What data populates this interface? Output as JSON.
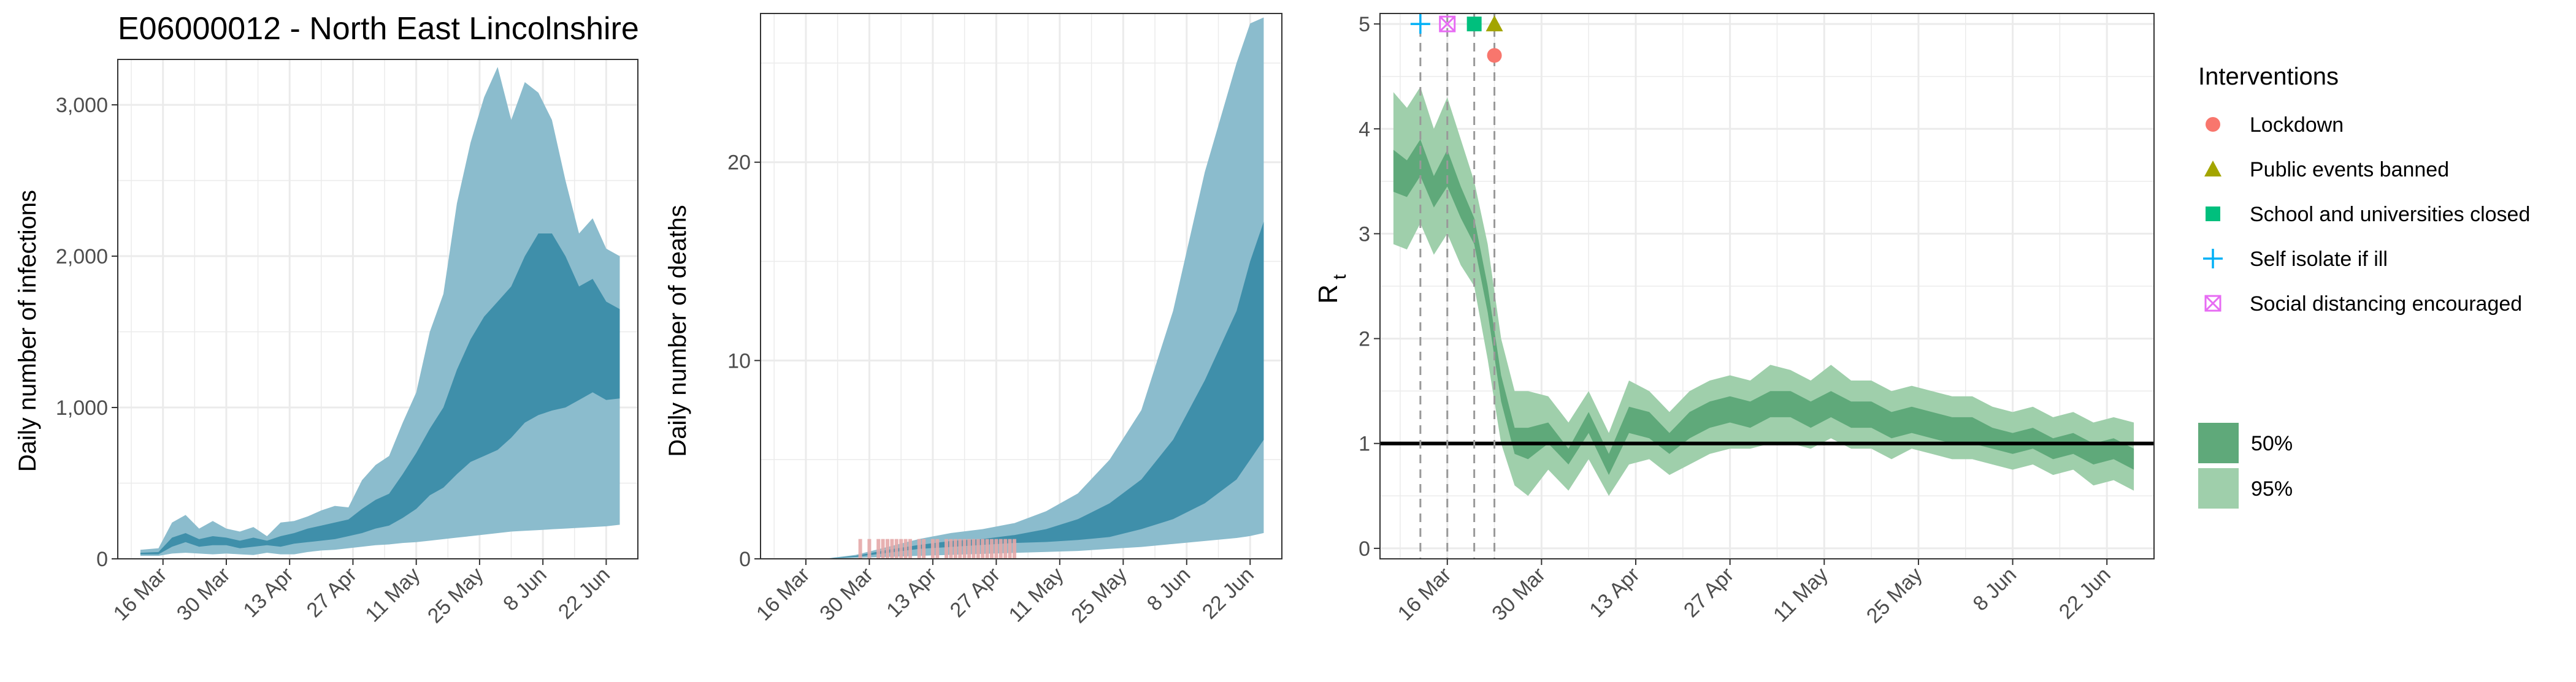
{
  "title": "E06000012 - North East Lincolnshire",
  "colors": {
    "band_95_blue": "#8bbccd",
    "band_50_blue": "#3f8faa",
    "band_95_green": "#9fcfab",
    "band_50_green": "#5fa97a",
    "observed_deaths": "#e4a8a8",
    "grid": "#ebebeb",
    "panel_border": "#333333",
    "rt_line": "#000000",
    "lockdown": "#f8766d",
    "public_events_banned": "#a3a500",
    "school_closed": "#00bf7d",
    "self_isolate": "#00b0f6",
    "social_distancing": "#e76bf3"
  },
  "chart_data": [
    {
      "type": "area",
      "id": "infections",
      "title": "E06000012 - North East Lincolnshire",
      "ylabel": "Daily number of infections",
      "xlabel": "",
      "x_ticks": [
        "16 Mar",
        "30 Mar",
        "13 Apr",
        "27 Apr",
        "11 May",
        "25 May",
        "8 Jun",
        "22 Jun"
      ],
      "y_ticks": [
        "0",
        "1,000",
        "2,000",
        "3,000"
      ],
      "y_tick_values": [
        0,
        1000,
        2000,
        3000
      ],
      "ylim": [
        0,
        3300
      ],
      "xlim": [
        "2020-03-06",
        "2020-06-29"
      ],
      "grid": true,
      "series": [
        {
          "name": "95%",
          "x": [
            "2020-03-11",
            "2020-03-15",
            "2020-03-18",
            "2020-03-21",
            "2020-03-24",
            "2020-03-27",
            "2020-03-30",
            "2020-04-02",
            "2020-04-05",
            "2020-04-08",
            "2020-04-11",
            "2020-04-14",
            "2020-04-17",
            "2020-04-20",
            "2020-04-23",
            "2020-04-26",
            "2020-04-29",
            "2020-05-02",
            "2020-05-05",
            "2020-05-08",
            "2020-05-11",
            "2020-05-14",
            "2020-05-17",
            "2020-05-20",
            "2020-05-23",
            "2020-05-26",
            "2020-05-29",
            "2020-06-01",
            "2020-06-04",
            "2020-06-07",
            "2020-06-10",
            "2020-06-13",
            "2020-06-16",
            "2020-06-19",
            "2020-06-22",
            "2020-06-25"
          ],
          "lower": [
            20,
            20,
            35,
            40,
            35,
            30,
            35,
            30,
            25,
            40,
            30,
            30,
            45,
            55,
            60,
            70,
            80,
            90,
            95,
            105,
            110,
            120,
            130,
            140,
            150,
            160,
            170,
            180,
            185,
            190,
            195,
            200,
            205,
            210,
            215,
            225
          ],
          "upper": [
            60,
            70,
            240,
            290,
            200,
            250,
            200,
            180,
            210,
            150,
            240,
            250,
            280,
            320,
            350,
            340,
            520,
            620,
            680,
            900,
            1100,
            1500,
            1750,
            2350,
            2750,
            3050,
            3250,
            2900,
            3150,
            3080,
            2900,
            2500,
            2150,
            2250,
            2050,
            2000
          ]
        },
        {
          "name": "50%",
          "x": [
            "2020-03-11",
            "2020-03-15",
            "2020-03-18",
            "2020-03-21",
            "2020-03-24",
            "2020-03-27",
            "2020-03-30",
            "2020-04-02",
            "2020-04-05",
            "2020-04-08",
            "2020-04-11",
            "2020-04-14",
            "2020-04-17",
            "2020-04-20",
            "2020-04-23",
            "2020-04-26",
            "2020-04-29",
            "2020-05-02",
            "2020-05-05",
            "2020-05-08",
            "2020-05-11",
            "2020-05-14",
            "2020-05-17",
            "2020-05-20",
            "2020-05-23",
            "2020-05-26",
            "2020-05-29",
            "2020-06-01",
            "2020-06-04",
            "2020-06-07",
            "2020-06-10",
            "2020-06-13",
            "2020-06-16",
            "2020-06-19",
            "2020-06-22",
            "2020-06-25"
          ],
          "lower": [
            30,
            30,
            80,
            110,
            80,
            90,
            90,
            70,
            80,
            90,
            80,
            100,
            110,
            120,
            130,
            150,
            170,
            200,
            220,
            270,
            330,
            420,
            470,
            560,
            640,
            680,
            720,
            800,
            900,
            950,
            980,
            1000,
            1050,
            1100,
            1050,
            1060
          ],
          "upper": [
            40,
            45,
            140,
            170,
            130,
            150,
            140,
            120,
            140,
            120,
            150,
            170,
            200,
            220,
            240,
            260,
            330,
            390,
            430,
            560,
            700,
            860,
            1000,
            1250,
            1450,
            1600,
            1700,
            1800,
            2000,
            2150,
            2150,
            2000,
            1800,
            1850,
            1700,
            1650
          ]
        }
      ]
    },
    {
      "type": "area",
      "id": "deaths",
      "ylabel": "Daily number of deaths",
      "xlabel": "",
      "x_ticks": [
        "16 Mar",
        "30 Mar",
        "13 Apr",
        "27 Apr",
        "11 May",
        "25 May",
        "8 Jun",
        "22 Jun"
      ],
      "y_ticks": [
        "0",
        "10",
        "20"
      ],
      "y_tick_values": [
        0,
        10,
        20
      ],
      "ylim": [
        0,
        27.5
      ],
      "xlim": [
        "2020-03-06",
        "2020-06-29"
      ],
      "grid": true,
      "series": [
        {
          "name": "95%",
          "x": [
            "2020-03-20",
            "2020-03-27",
            "2020-04-03",
            "2020-04-10",
            "2020-04-17",
            "2020-04-24",
            "2020-05-01",
            "2020-05-08",
            "2020-05-15",
            "2020-05-22",
            "2020-05-29",
            "2020-06-05",
            "2020-06-12",
            "2020-06-19",
            "2020-06-22",
            "2020-06-25"
          ],
          "lower": [
            0,
            0.05,
            0.1,
            0.15,
            0.2,
            0.25,
            0.3,
            0.35,
            0.4,
            0.5,
            0.6,
            0.75,
            0.9,
            1.05,
            1.15,
            1.3
          ],
          "upper": [
            0,
            0.2,
            0.6,
            1.0,
            1.3,
            1.5,
            1.8,
            2.4,
            3.3,
            5.0,
            7.5,
            12.5,
            19.5,
            25.0,
            27.0,
            27.3
          ]
        },
        {
          "name": "50%",
          "x": [
            "2020-03-20",
            "2020-03-27",
            "2020-04-03",
            "2020-04-10",
            "2020-04-17",
            "2020-04-24",
            "2020-05-01",
            "2020-05-08",
            "2020-05-15",
            "2020-05-22",
            "2020-05-29",
            "2020-06-05",
            "2020-06-12",
            "2020-06-19",
            "2020-06-22",
            "2020-06-25"
          ],
          "lower": [
            0,
            0.1,
            0.3,
            0.5,
            0.6,
            0.7,
            0.8,
            0.85,
            0.95,
            1.1,
            1.5,
            2.0,
            2.8,
            4.0,
            5.0,
            6.0
          ],
          "upper": [
            0,
            0.15,
            0.45,
            0.7,
            0.9,
            1.0,
            1.2,
            1.5,
            2.0,
            2.8,
            4.0,
            6.0,
            9.0,
            12.5,
            15.0,
            17.0
          ]
        }
      ],
      "observed_deaths": {
        "name": "observed",
        "x": [
          "2020-03-28",
          "2020-03-30",
          "2020-04-01",
          "2020-04-02",
          "2020-04-03",
          "2020-04-04",
          "2020-04-05",
          "2020-04-06",
          "2020-04-07",
          "2020-04-08",
          "2020-04-10",
          "2020-04-11",
          "2020-04-13",
          "2020-04-14",
          "2020-04-16",
          "2020-04-17",
          "2020-04-18",
          "2020-04-19",
          "2020-04-20",
          "2020-04-21",
          "2020-04-22",
          "2020-04-23",
          "2020-04-24",
          "2020-04-25",
          "2020-04-26",
          "2020-04-27",
          "2020-04-28",
          "2020-04-29",
          "2020-04-30",
          "2020-05-01"
        ],
        "values": [
          1,
          1,
          1,
          1,
          1,
          1,
          1,
          1,
          1,
          1,
          1,
          1,
          1,
          1,
          1,
          1,
          1,
          1,
          1,
          1,
          1,
          1,
          1,
          1,
          1,
          1,
          1,
          1,
          1,
          1
        ]
      }
    },
    {
      "type": "area",
      "id": "rt",
      "ylabel": "R",
      "ylabel_sub": "t",
      "xlabel": "",
      "x_ticks": [
        "16 Mar",
        "30 Mar",
        "13 Apr",
        "27 Apr",
        "11 May",
        "25 May",
        "8 Jun",
        "22 Jun"
      ],
      "y_ticks": [
        "0",
        "1",
        "2",
        "3",
        "4",
        "5"
      ],
      "y_tick_values": [
        0,
        1,
        2,
        3,
        4,
        5
      ],
      "ylim": [
        -0.1,
        5.1
      ],
      "xlim": [
        "2020-03-06",
        "2020-06-29"
      ],
      "grid": true,
      "reference_line": 1,
      "series": [
        {
          "name": "95%",
          "x": [
            "2020-03-08",
            "2020-03-10",
            "2020-03-12",
            "2020-03-14",
            "2020-03-16",
            "2020-03-18",
            "2020-03-20",
            "2020-03-22",
            "2020-03-24",
            "2020-03-26",
            "2020-03-28",
            "2020-03-31",
            "2020-04-03",
            "2020-04-06",
            "2020-04-09",
            "2020-04-12",
            "2020-04-15",
            "2020-04-18",
            "2020-04-21",
            "2020-04-24",
            "2020-04-27",
            "2020-04-30",
            "2020-05-03",
            "2020-05-06",
            "2020-05-09",
            "2020-05-12",
            "2020-05-15",
            "2020-05-18",
            "2020-05-21",
            "2020-05-24",
            "2020-05-27",
            "2020-05-30",
            "2020-06-02",
            "2020-06-05",
            "2020-06-08",
            "2020-06-11",
            "2020-06-14",
            "2020-06-17",
            "2020-06-20",
            "2020-06-23",
            "2020-06-26"
          ],
          "lower": [
            2.9,
            2.85,
            3.1,
            2.8,
            3.0,
            2.7,
            2.5,
            1.8,
            1.0,
            0.6,
            0.5,
            0.75,
            0.55,
            0.85,
            0.5,
            0.8,
            0.85,
            0.7,
            0.8,
            0.9,
            0.95,
            0.95,
            1.0,
            1.0,
            0.95,
            1.05,
            0.95,
            0.95,
            0.85,
            0.95,
            0.9,
            0.85,
            0.85,
            0.8,
            0.75,
            0.8,
            0.7,
            0.75,
            0.6,
            0.65,
            0.55
          ],
          "upper": [
            4.35,
            4.2,
            4.4,
            4.0,
            4.3,
            3.9,
            3.5,
            2.9,
            2.0,
            1.5,
            1.5,
            1.45,
            1.2,
            1.5,
            1.1,
            1.6,
            1.5,
            1.3,
            1.5,
            1.6,
            1.65,
            1.6,
            1.75,
            1.7,
            1.6,
            1.75,
            1.6,
            1.6,
            1.5,
            1.55,
            1.5,
            1.45,
            1.45,
            1.35,
            1.3,
            1.35,
            1.25,
            1.3,
            1.2,
            1.25,
            1.2
          ]
        },
        {
          "name": "50%",
          "x": [
            "2020-03-08",
            "2020-03-10",
            "2020-03-12",
            "2020-03-14",
            "2020-03-16",
            "2020-03-18",
            "2020-03-20",
            "2020-03-22",
            "2020-03-24",
            "2020-03-26",
            "2020-03-28",
            "2020-03-31",
            "2020-04-03",
            "2020-04-06",
            "2020-04-09",
            "2020-04-12",
            "2020-04-15",
            "2020-04-18",
            "2020-04-21",
            "2020-04-24",
            "2020-04-27",
            "2020-04-30",
            "2020-05-03",
            "2020-05-06",
            "2020-05-09",
            "2020-05-12",
            "2020-05-15",
            "2020-05-18",
            "2020-05-21",
            "2020-05-24",
            "2020-05-27",
            "2020-05-30",
            "2020-06-02",
            "2020-06-05",
            "2020-06-08",
            "2020-06-11",
            "2020-06-14",
            "2020-06-17",
            "2020-06-20",
            "2020-06-23",
            "2020-06-26"
          ],
          "lower": [
            3.4,
            3.35,
            3.55,
            3.25,
            3.45,
            3.15,
            2.9,
            2.25,
            1.4,
            0.9,
            0.85,
            1.0,
            0.8,
            1.1,
            0.7,
            1.1,
            1.05,
            0.9,
            1.05,
            1.15,
            1.2,
            1.15,
            1.25,
            1.25,
            1.15,
            1.25,
            1.15,
            1.15,
            1.05,
            1.1,
            1.05,
            1.0,
            1.0,
            0.95,
            0.9,
            0.95,
            0.85,
            0.9,
            0.8,
            0.85,
            0.75
          ],
          "upper": [
            3.8,
            3.7,
            3.9,
            3.55,
            3.8,
            3.45,
            3.15,
            2.5,
            1.65,
            1.15,
            1.15,
            1.2,
            0.95,
            1.3,
            0.9,
            1.35,
            1.3,
            1.1,
            1.3,
            1.4,
            1.45,
            1.4,
            1.5,
            1.5,
            1.4,
            1.5,
            1.4,
            1.4,
            1.3,
            1.35,
            1.3,
            1.25,
            1.25,
            1.15,
            1.1,
            1.15,
            1.05,
            1.1,
            1.0,
            1.05,
            0.95
          ]
        }
      ],
      "interventions": [
        {
          "name": "Self isolate if ill",
          "date": "2020-03-12",
          "y": 5.0,
          "shape": "plus",
          "color_key": "self_isolate"
        },
        {
          "name": "Social distancing encouraged",
          "date": "2020-03-16",
          "y": 5.0,
          "shape": "boxx",
          "color_key": "social_distancing"
        },
        {
          "name": "School and universities closed",
          "date": "2020-03-20",
          "y": 5.0,
          "shape": "square",
          "color_key": "school_closed"
        },
        {
          "name": "Public events banned",
          "date": "2020-03-23",
          "y": 5.0,
          "shape": "triangle",
          "color_key": "public_events_banned"
        },
        {
          "name": "Lockdown",
          "date": "2020-03-23",
          "y": 4.7,
          "shape": "circle",
          "color_key": "lockdown"
        }
      ]
    }
  ],
  "legend": {
    "interventions_title": "Interventions",
    "interventions": [
      {
        "label": "Lockdown",
        "shape": "circle",
        "color_key": "lockdown"
      },
      {
        "label": "Public events banned",
        "shape": "triangle",
        "color_key": "public_events_banned"
      },
      {
        "label": "School and universities closed",
        "shape": "square",
        "color_key": "school_closed"
      },
      {
        "label": "Self isolate if ill",
        "shape": "plus",
        "color_key": "self_isolate"
      },
      {
        "label": "Social distancing encouraged",
        "shape": "boxx",
        "color_key": "social_distancing"
      }
    ],
    "bands": [
      {
        "label": "50%",
        "color_key": "band_50_green"
      },
      {
        "label": "95%",
        "color_key": "band_95_green"
      }
    ]
  }
}
